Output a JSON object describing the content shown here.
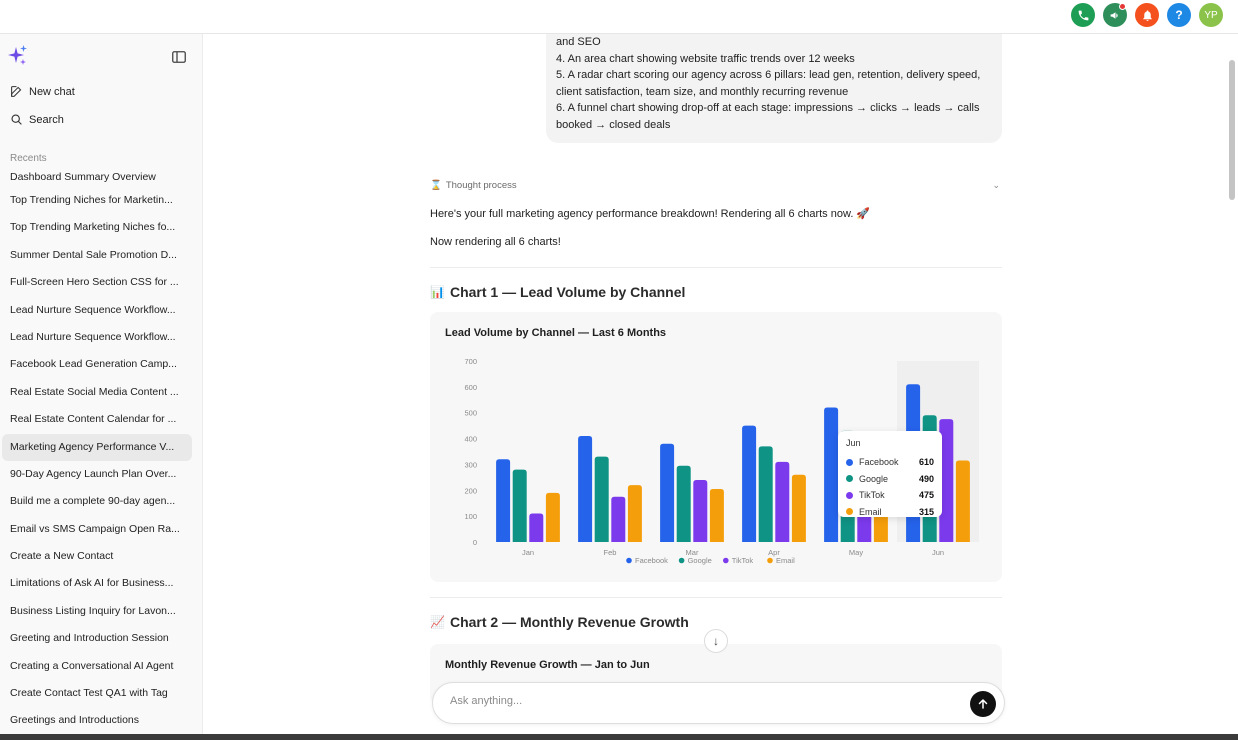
{
  "topbar": {
    "icons": [
      {
        "name": "phone-icon",
        "color": "#1e9e54"
      },
      {
        "name": "megaphone-icon",
        "color": "#2f8f5b",
        "badge": true
      },
      {
        "name": "bell-icon",
        "color": "#f4511e"
      },
      {
        "name": "help-icon",
        "color": "#1e88e5",
        "label": "?"
      },
      {
        "name": "avatar",
        "color": "#8bc34a",
        "label": "YP"
      }
    ]
  },
  "sidebar": {
    "new_chat": "New chat",
    "search": "Search",
    "recents_label": "Recents",
    "recents": [
      "Dashboard Summary Overview",
      "Top Trending Niches for Marketin...",
      "Top Trending Marketing Niches fo...",
      "Summer Dental Sale Promotion D...",
      "Full-Screen Hero Section CSS for ...",
      "Lead Nurture Sequence Workflow...",
      "Lead Nurture Sequence Workflow...",
      "Facebook Lead Generation Camp...",
      "Real Estate Social Media Content ...",
      "Real Estate Content Calendar for ...",
      "Marketing Agency Performance V...",
      "90-Day Agency Launch Plan Over...",
      "Build me a complete 90-day agen...",
      "Email vs SMS Campaign Open Ra...",
      "Create a New Contact",
      "Limitations of Ask AI for Business...",
      "Business Listing Inquiry for Lavon...",
      "Greeting and Introduction Session",
      "Creating a Conversational AI Agent",
      "Create Contact Test QA1 with Tag",
      "Greetings and Introductions"
    ],
    "active_index": 10
  },
  "chat": {
    "user_lines": [
      "and SEO",
      "4. An area chart showing website traffic trends over 12 weeks",
      "5. A radar chart scoring our agency across 6 pillars: lead gen, retention, delivery speed, client satisfaction, team size, and monthly recurring revenue",
      "6. A funnel chart showing drop-off at each stage: impressions → clicks → leads → calls booked → closed deals"
    ],
    "thought_label": "Thought process",
    "reply_1": "Here's your full marketing agency performance breakdown! Rendering all 6 charts now. 🚀",
    "reply_2": "Now rendering all 6 charts!",
    "chart1_heading": "Chart 1 — Lead Volume by Channel",
    "chart1_emoji": "📊",
    "chart2_heading": "Chart 2 — Monthly Revenue Growth",
    "chart2_emoji": "📈",
    "chart2_card_title": "Monthly Revenue Growth — Jan to Jun"
  },
  "composer": {
    "placeholder": "Ask anything..."
  },
  "chart_data": {
    "type": "bar",
    "title": "Lead Volume by Channel — Last 6 Months",
    "categories": [
      "Jan",
      "Feb",
      "Mar",
      "Apr",
      "May",
      "Jun"
    ],
    "ylim": [
      0,
      700
    ],
    "yticks": [
      0,
      100,
      200,
      300,
      400,
      500,
      600,
      700
    ],
    "grid": false,
    "legend": "bottom",
    "series": [
      {
        "name": "Facebook",
        "color": "#2563eb",
        "values": [
          320,
          410,
          380,
          450,
          520,
          610
        ]
      },
      {
        "name": "Google",
        "color": "#0e9384",
        "values": [
          280,
          330,
          295,
          370,
          430,
          490
        ]
      },
      {
        "name": "TikTok",
        "color": "#7c3aed",
        "values": [
          110,
          175,
          240,
          310,
          380,
          475
        ]
      },
      {
        "name": "Email",
        "color": "#f59e0b",
        "values": [
          190,
          220,
          205,
          260,
          290,
          315
        ]
      }
    ],
    "tooltip": {
      "category": "Jun",
      "rows": [
        {
          "name": "Facebook",
          "value": "610"
        },
        {
          "name": "Google",
          "value": "490"
        },
        {
          "name": "TikTok",
          "value": "475"
        },
        {
          "name": "Email",
          "value": "315"
        }
      ]
    }
  }
}
